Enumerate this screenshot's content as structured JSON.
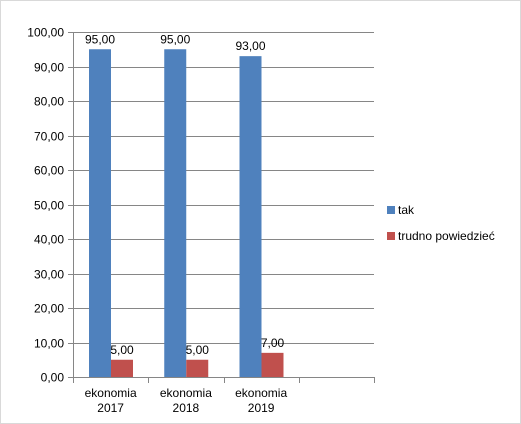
{
  "chart_data": {
    "type": "bar",
    "categories": [
      [
        "ekonomia",
        "2017"
      ],
      [
        "ekonomia",
        "2018"
      ],
      [
        "ekonomia",
        "2019"
      ],
      [
        "",
        ""
      ]
    ],
    "series": [
      {
        "name": "tak",
        "color": "#4f81bd",
        "values": [
          95.0,
          95.0,
          93.0,
          null
        ],
        "labels": [
          "95,00",
          "95,00",
          "93,00",
          ""
        ]
      },
      {
        "name": "trudno powiedzieć",
        "color": "#c0504d",
        "values": [
          5.0,
          5.0,
          7.0,
          null
        ],
        "labels": [
          "5,00",
          "5,00",
          "7,00",
          ""
        ]
      }
    ],
    "y_ticks": [
      "0,00",
      "10,00",
      "20,00",
      "30,00",
      "40,00",
      "50,00",
      "60,00",
      "70,00",
      "80,00",
      "90,00",
      "100,00"
    ],
    "ylim": [
      0,
      100
    ],
    "y_step": 10,
    "grid": true,
    "legend_position": "right",
    "title": "",
    "xlabel": "",
    "ylabel": ""
  }
}
